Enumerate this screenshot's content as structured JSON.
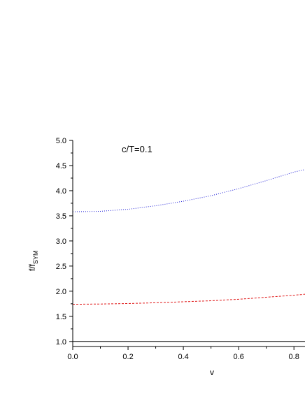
{
  "chart_data": {
    "type": "line",
    "annotation": "c/T=0.1",
    "xlabel": "v",
    "ylabel_main": "f/f",
    "ylabel_sub": "SYM",
    "xlim": [
      0.0,
      0.84
    ],
    "ylim": [
      0.9,
      5.0
    ],
    "x_ticks": [
      "0.0",
      "0.2",
      "0.4",
      "0.6",
      "0.8"
    ],
    "y_ticks": [
      "1.0",
      "1.5",
      "2.0",
      "2.5",
      "3.0",
      "3.5",
      "4.0",
      "4.5",
      "5.0"
    ],
    "grid": false,
    "series": [
      {
        "style": "dotted",
        "color": "#1c1cd6",
        "x": [
          0.0,
          0.1,
          0.2,
          0.3,
          0.4,
          0.5,
          0.6,
          0.7,
          0.8,
          0.84
        ],
        "y": [
          3.58,
          3.59,
          3.63,
          3.7,
          3.79,
          3.9,
          4.04,
          4.2,
          4.37,
          4.42
        ]
      },
      {
        "style": "dashed",
        "color": "#e01818",
        "x": [
          0.0,
          0.1,
          0.2,
          0.3,
          0.4,
          0.5,
          0.6,
          0.7,
          0.8,
          0.84
        ],
        "y": [
          1.74,
          1.745,
          1.755,
          1.77,
          1.79,
          1.81,
          1.84,
          1.88,
          1.92,
          1.94
        ]
      },
      {
        "style": "solid",
        "color": "#000000",
        "x": [
          0.0,
          0.84
        ],
        "y": [
          1.0,
          1.0
        ]
      }
    ]
  }
}
